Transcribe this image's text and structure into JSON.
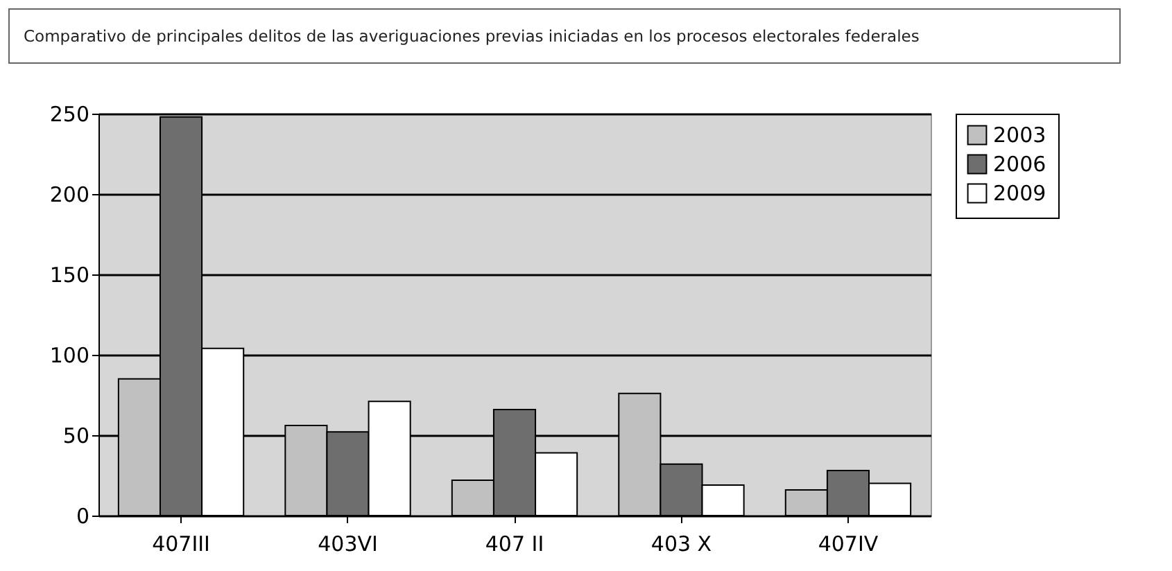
{
  "chart_data": {
    "type": "bar",
    "title": "Comparativo de principales delitos  de las averiguaciones previas iniciadas en los procesos electorales federales",
    "categories": [
      "407III",
      "403VI",
      "407 II",
      "403 X",
      "407IV"
    ],
    "series": [
      {
        "name": "2003",
        "color": "#c0c0c0",
        "values": [
          85,
          56,
          22,
          76,
          16
        ]
      },
      {
        "name": "2006",
        "color": "#6e6e6e",
        "values": [
          248,
          52,
          66,
          32,
          28
        ]
      },
      {
        "name": "2009",
        "color": "#ffffff",
        "values": [
          104,
          71,
          39,
          19,
          20
        ]
      }
    ],
    "ylim": [
      0,
      250
    ],
    "yticks": [
      0,
      50,
      100,
      150,
      200,
      250
    ],
    "grid": "y",
    "legend": "right"
  }
}
